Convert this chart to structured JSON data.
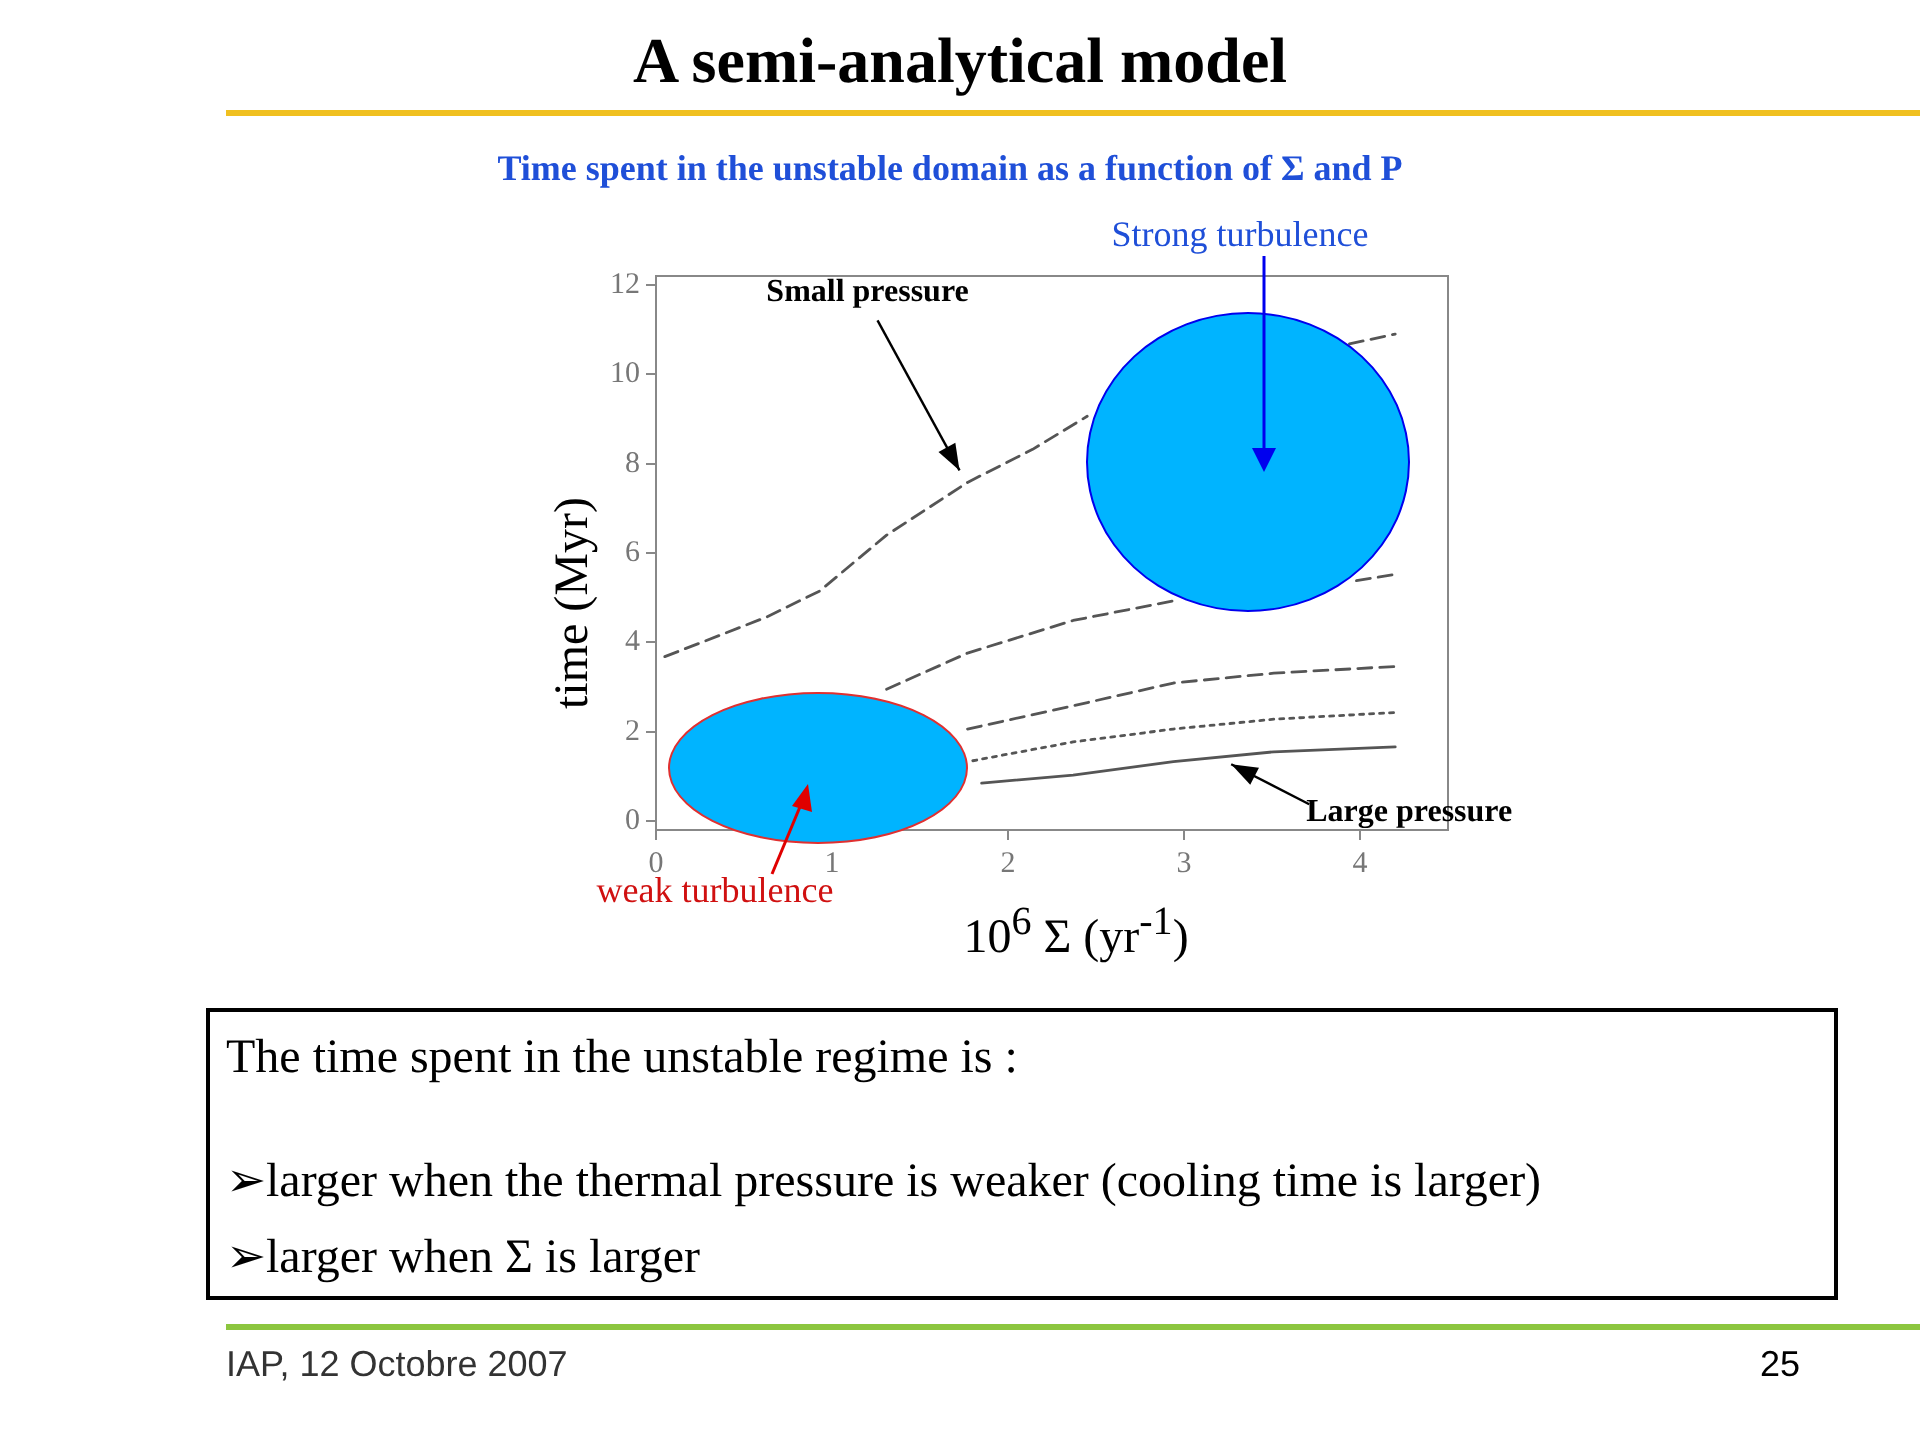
{
  "chart_data": {
    "type": "line",
    "title": "A semi-analytical model",
    "subtitle": "Time spent in the unstable domain as a function of Σ and P",
    "xlabel": "10$^{6}$ Σ (yr$^{-1}$)",
    "ylabel": "time (Myr)",
    "xlim": [
      0,
      4.5
    ],
    "xticks": [
      0,
      1,
      2,
      3,
      4
    ],
    "ylim": [
      -0.2,
      12.2
    ],
    "yticks": [
      0,
      2,
      4,
      6,
      8,
      10,
      12
    ],
    "grid": false,
    "legend": false,
    "marker": "none",
    "series": [
      {
        "color": "#555555",
        "line_style": "dashed",
        "x": [
          0.05,
          0.63,
          0.93,
          1.31,
          1.77,
          2.14,
          2.45,
          2.8,
          3.2,
          3.6,
          3.94,
          4.2
        ],
        "values": [
          3.68,
          4.57,
          5.15,
          6.4,
          7.58,
          8.32,
          9.06,
          null,
          null,
          null,
          10.68,
          10.9
        ]
      },
      {
        "color": "#555555",
        "line_style": "dashed",
        "x": [
          1.31,
          1.77,
          2.37,
          2.94,
          3.3,
          3.6,
          3.98,
          4.2
        ],
        "values": [
          2.95,
          3.76,
          4.49,
          4.93,
          null,
          null,
          5.38,
          5.52
        ]
      },
      {
        "color": "#555555",
        "line_style": "dashed",
        "x": [
          1.77,
          2.37,
          2.94,
          3.51,
          4.2
        ],
        "values": [
          2.06,
          2.58,
          3.09,
          3.31,
          3.46
        ]
      },
      {
        "color": "#555555",
        "line_style": "dotted",
        "x": [
          1.8,
          2.37,
          2.94,
          3.51,
          4.2
        ],
        "values": [
          1.35,
          1.77,
          2.06,
          2.28,
          2.43
        ]
      },
      {
        "color": "#555555",
        "line_style": "solid",
        "x": [
          1.85,
          2.37,
          2.94,
          3.51,
          4.2
        ],
        "values": [
          0.85,
          1.03,
          1.33,
          1.55,
          1.66
        ]
      }
    ],
    "annotations": [
      {
        "text": "Small pressure",
        "x": 1.77,
        "y": 7.58
      },
      {
        "text": "Large pressure",
        "x": 3.2,
        "y": 1.45
      },
      "Strong turbulence",
      "weak turbulence",
      "The time spent in the unstable regime is :",
      "➢larger when the thermal pressure is weaker (cooling time is larger)",
      "➢larger when Σ is larger",
      "IAP, 12 Octobre 2007",
      "25"
    ]
  }
}
